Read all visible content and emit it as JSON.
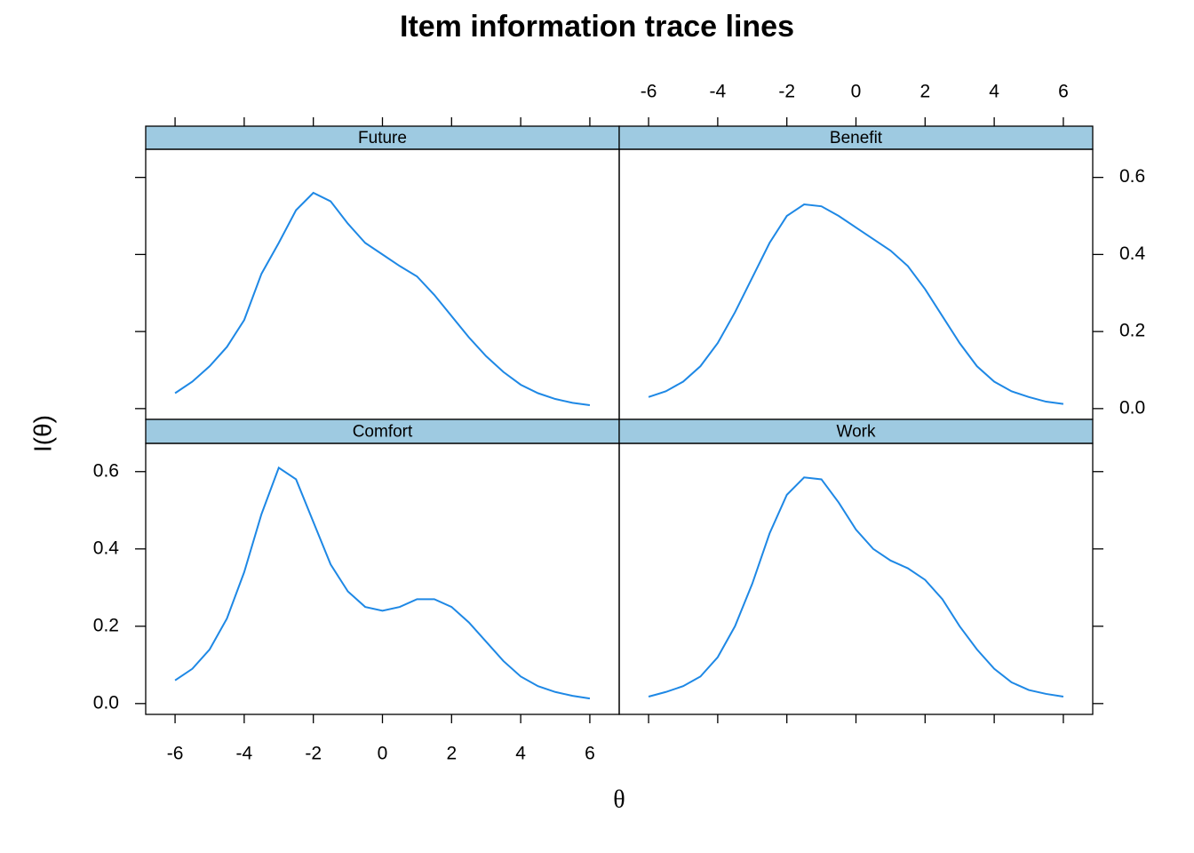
{
  "title": "Item information trace lines",
  "x_label": "θ",
  "y_label": "I(θ)",
  "chart_data": [
    {
      "type": "line",
      "title": "Future",
      "color": "#1e88e5",
      "x": [
        -6,
        -5.5,
        -5,
        -4.5,
        -4,
        -3.5,
        -3,
        -2.5,
        -2,
        -1.5,
        -1,
        -0.5,
        0,
        0.5,
        1,
        1.5,
        2,
        2.5,
        3,
        3.5,
        4,
        4.5,
        5,
        5.5,
        6
      ],
      "values": [
        0.04,
        0.07,
        0.11,
        0.16,
        0.23,
        0.35,
        0.43,
        0.515,
        0.56,
        0.538,
        0.48,
        0.43,
        0.4,
        0.37,
        0.343,
        0.295,
        0.24,
        0.185,
        0.136,
        0.095,
        0.062,
        0.04,
        0.025,
        0.015,
        0.009
      ],
      "xlim": [
        -6.85,
        6.85
      ],
      "ylim": [
        -0.028,
        0.673
      ],
      "xticks": [
        -6,
        -4,
        -2,
        0,
        2,
        4,
        6
      ],
      "yticks": [
        {
          "value": 0,
          "label": "0.0"
        },
        0.2,
        0.4,
        0.6
      ]
    },
    {
      "type": "line",
      "title": "Benefit",
      "color": "#1e88e5",
      "x": [
        -6,
        -5.5,
        -5,
        -4.5,
        -4,
        -3.5,
        -3,
        -2.5,
        -2,
        -1.5,
        -1,
        -0.5,
        0,
        0.5,
        1,
        1.5,
        2,
        2.5,
        3,
        3.5,
        4,
        4.5,
        5,
        5.5,
        6
      ],
      "values": [
        0.03,
        0.045,
        0.07,
        0.11,
        0.17,
        0.25,
        0.34,
        0.43,
        0.5,
        0.53,
        0.525,
        0.5,
        0.47,
        0.44,
        0.41,
        0.37,
        0.31,
        0.24,
        0.17,
        0.11,
        0.07,
        0.045,
        0.03,
        0.018,
        0.012
      ],
      "xlim": [
        -6.85,
        6.85
      ],
      "ylim": [
        -0.028,
        0.673
      ],
      "xticks": [
        -6,
        -4,
        -2,
        0,
        2,
        4,
        6
      ],
      "yticks": [
        {
          "value": 0,
          "label": "0.0"
        },
        0.2,
        0.4,
        0.6
      ]
    },
    {
      "type": "line",
      "title": "Comfort",
      "color": "#1e88e5",
      "x": [
        -6,
        -5.5,
        -5,
        -4.5,
        -4,
        -3.5,
        -3,
        -2.5,
        -2,
        -1.5,
        -1,
        -0.5,
        0,
        0.5,
        1,
        1.5,
        2,
        2.5,
        3,
        3.5,
        4,
        4.5,
        5,
        5.5,
        6
      ],
      "values": [
        0.06,
        0.09,
        0.14,
        0.22,
        0.34,
        0.49,
        0.61,
        0.58,
        0.47,
        0.36,
        0.29,
        0.25,
        0.24,
        0.25,
        0.27,
        0.27,
        0.25,
        0.21,
        0.16,
        0.11,
        0.07,
        0.045,
        0.03,
        0.02,
        0.013
      ],
      "xlim": [
        -6.85,
        6.85
      ],
      "ylim": [
        -0.028,
        0.673
      ],
      "xticks": [
        -6,
        -4,
        -2,
        0,
        2,
        4,
        6
      ],
      "yticks": [
        {
          "value": 0,
          "label": "0.0"
        },
        0.2,
        0.4,
        0.6
      ]
    },
    {
      "type": "line",
      "title": "Work",
      "color": "#1e88e5",
      "x": [
        -6,
        -5.5,
        -5,
        -4.5,
        -4,
        -3.5,
        -3,
        -2.5,
        -2,
        -1.5,
        -1,
        -0.5,
        0,
        0.5,
        1,
        1.5,
        2,
        2.5,
        3,
        3.5,
        4,
        4.5,
        5,
        5.5,
        6
      ],
      "values": [
        0.018,
        0.03,
        0.045,
        0.07,
        0.12,
        0.2,
        0.31,
        0.44,
        0.54,
        0.585,
        0.58,
        0.52,
        0.45,
        0.4,
        0.37,
        0.35,
        0.32,
        0.27,
        0.2,
        0.14,
        0.09,
        0.055,
        0.035,
        0.025,
        0.018
      ],
      "xlim": [
        -6.85,
        6.85
      ],
      "ylim": [
        -0.028,
        0.673
      ],
      "xticks": [
        -6,
        -4,
        -2,
        0,
        2,
        4,
        6
      ],
      "yticks": [
        {
          "value": 0,
          "label": "0.0"
        },
        0.2,
        0.4,
        0.6
      ]
    }
  ]
}
